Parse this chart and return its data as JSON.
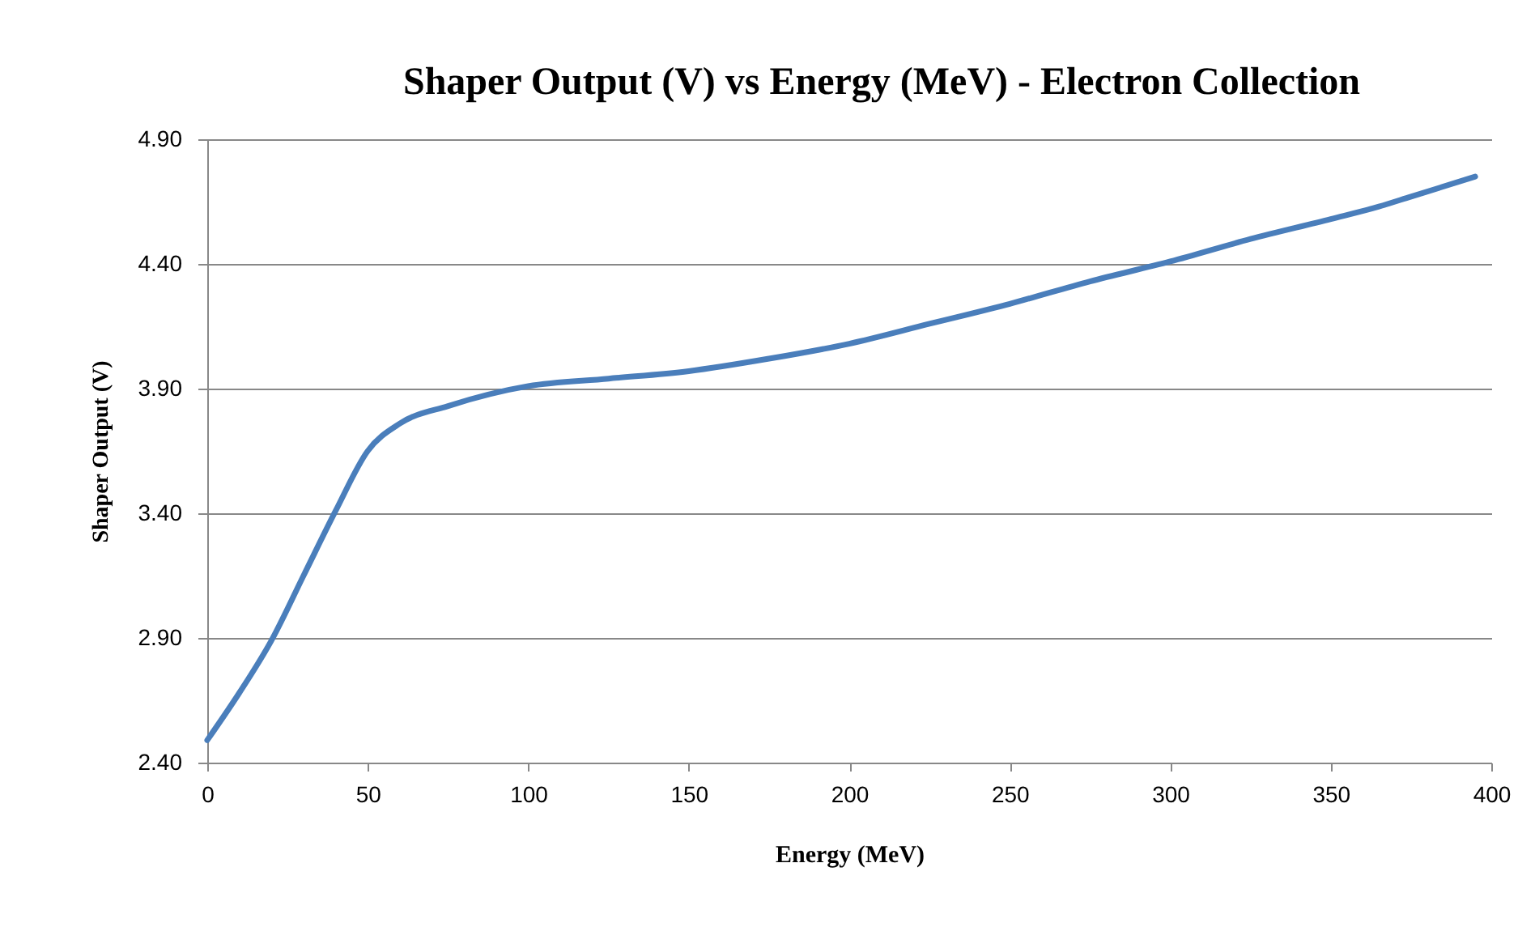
{
  "chart_data": {
    "type": "line",
    "title": "Shaper Output (V) vs Energy (MeV) - Electron Collection",
    "xlabel": "Energy (MeV)",
    "ylabel": "Shaper Output  (V)",
    "x": [
      0,
      10,
      20,
      30,
      40,
      50,
      60,
      75,
      100,
      125,
      150,
      175,
      200,
      225,
      250,
      275,
      300,
      325,
      350,
      365,
      375,
      395
    ],
    "series": [
      {
        "color": "#4a7ebb",
        "values": [
          2.49,
          2.68,
          2.89,
          3.15,
          3.41,
          3.65,
          3.76,
          3.83,
          3.91,
          3.94,
          3.97,
          4.02,
          4.08,
          4.16,
          4.24,
          4.33,
          4.41,
          4.5,
          4.58,
          4.63,
          4.67,
          4.75
        ]
      }
    ],
    "xlim": [
      0,
      400
    ],
    "xticks": [
      0,
      50,
      100,
      150,
      200,
      250,
      300,
      350,
      400
    ],
    "ylim": [
      2.4,
      4.9
    ],
    "yticks": [
      {
        "value": 2.4,
        "label": "2.40"
      },
      {
        "value": 2.9,
        "label": "2.90"
      },
      {
        "value": 3.4,
        "label": "3.40"
      },
      {
        "value": 3.9,
        "label": "3.90"
      },
      {
        "value": 4.4,
        "label": "4.40"
      },
      {
        "value": 4.9,
        "label": "4.90"
      }
    ],
    "grid": "y",
    "legend": false,
    "marker": "none",
    "line_style": "solid"
  }
}
